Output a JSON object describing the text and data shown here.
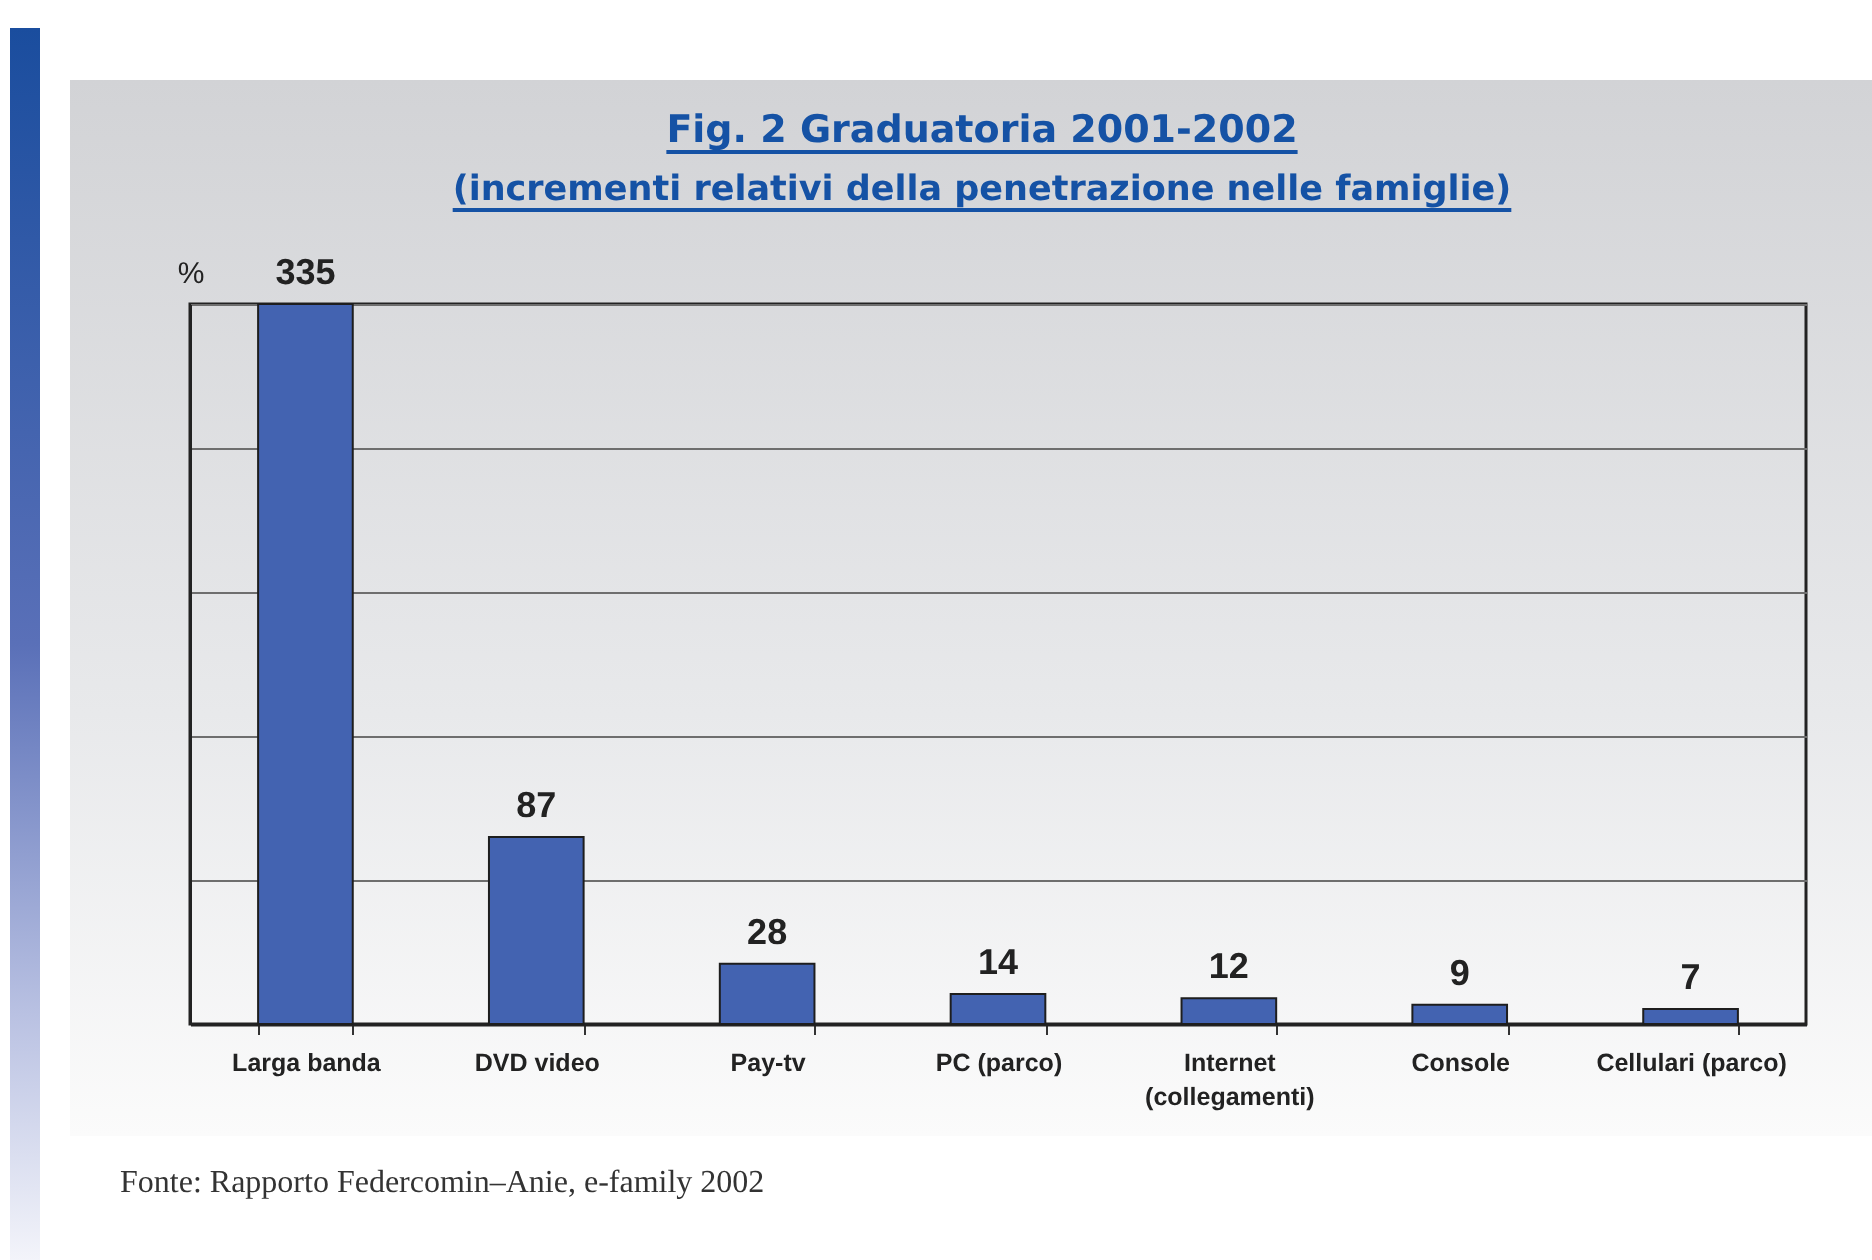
{
  "chart_data": {
    "type": "bar",
    "title": "Fig. 2 Graduatoria 2001-2002",
    "subtitle": "(incrementi relativi della penetrazione nelle famiglie)",
    "ylabel": "%",
    "categories": [
      "Larga banda",
      "DVD video",
      "Pay-tv",
      "PC (parco)",
      "Internet (collegamenti)",
      "Console",
      "Cellulari (parco)"
    ],
    "values": [
      335,
      87,
      28,
      14,
      12,
      9,
      7
    ],
    "color": "#4363b1",
    "ylim": [
      0,
      335
    ],
    "yticks": [
      {
        "value": 0,
        "label": null
      },
      {
        "value": 67,
        "label": null
      },
      {
        "value": 134,
        "label": null
      },
      {
        "value": 201,
        "label": null
      },
      {
        "value": 268,
        "label": null
      },
      {
        "value": 335,
        "label": null
      }
    ],
    "grid": "y",
    "tick_labels": "x",
    "data_labels": true,
    "annotations": [
      "Fonte: Rapporto Federcomin–Anie, e-family 2002"
    ]
  }
}
